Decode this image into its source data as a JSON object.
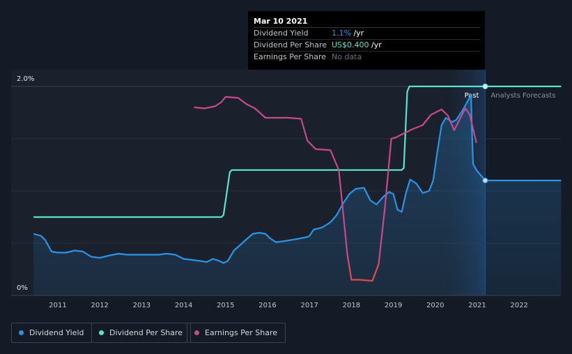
{
  "chart_data": {
    "type": "line",
    "x_unit": "year",
    "xlim": [
      2010.4,
      2023.0
    ],
    "ylim": [
      0,
      2.0
    ],
    "y_ticks": [
      {
        "value": 2.0,
        "label": "2.0%"
      },
      {
        "value": 0,
        "label": "0%"
      }
    ],
    "x_ticks": [
      "2011",
      "2012",
      "2013",
      "2014",
      "2015",
      "2016",
      "2017",
      "2018",
      "2019",
      "2020",
      "2021",
      "2022"
    ],
    "grid": true,
    "past_label": "Past",
    "forecast_label": "Analysts Forecasts",
    "current_x": 2021.19,
    "series": [
      {
        "name": "Dividend Yield",
        "color": "#2b94e6",
        "area": true,
        "points": [
          [
            2010.42,
            0.59
          ],
          [
            2010.6,
            0.57
          ],
          [
            2010.7,
            0.53
          ],
          [
            2010.85,
            0.42
          ],
          [
            2011.0,
            0.41
          ],
          [
            2011.2,
            0.41
          ],
          [
            2011.4,
            0.43
          ],
          [
            2011.6,
            0.42
          ],
          [
            2011.8,
            0.37
          ],
          [
            2012.0,
            0.36
          ],
          [
            2012.2,
            0.38
          ],
          [
            2012.45,
            0.4
          ],
          [
            2012.65,
            0.39
          ],
          [
            2012.9,
            0.39
          ],
          [
            2013.15,
            0.39
          ],
          [
            2013.4,
            0.39
          ],
          [
            2013.6,
            0.4
          ],
          [
            2013.8,
            0.39
          ],
          [
            2014.0,
            0.35
          ],
          [
            2014.2,
            0.34
          ],
          [
            2014.4,
            0.33
          ],
          [
            2014.55,
            0.32
          ],
          [
            2014.7,
            0.35
          ],
          [
            2014.85,
            0.33
          ],
          [
            2014.95,
            0.31
          ],
          [
            2015.05,
            0.33
          ],
          [
            2015.2,
            0.43
          ],
          [
            2015.45,
            0.52
          ],
          [
            2015.65,
            0.59
          ],
          [
            2015.8,
            0.6
          ],
          [
            2015.95,
            0.59
          ],
          [
            2016.05,
            0.55
          ],
          [
            2016.2,
            0.51
          ],
          [
            2016.4,
            0.52
          ],
          [
            2016.7,
            0.54
          ],
          [
            2016.95,
            0.56
          ],
          [
            2017.0,
            0.57
          ],
          [
            2017.1,
            0.63
          ],
          [
            2017.3,
            0.65
          ],
          [
            2017.5,
            0.7
          ],
          [
            2017.65,
            0.77
          ],
          [
            2017.8,
            0.88
          ],
          [
            2017.95,
            0.97
          ],
          [
            2018.1,
            1.02
          ],
          [
            2018.3,
            1.03
          ],
          [
            2018.45,
            0.91
          ],
          [
            2018.6,
            0.87
          ],
          [
            2018.75,
            0.94
          ],
          [
            2018.9,
            0.99
          ],
          [
            2019.0,
            0.97
          ],
          [
            2019.1,
            0.82
          ],
          [
            2019.2,
            0.8
          ],
          [
            2019.3,
            0.98
          ],
          [
            2019.4,
            1.11
          ],
          [
            2019.55,
            1.07
          ],
          [
            2019.7,
            0.98
          ],
          [
            2019.85,
            1.0
          ],
          [
            2019.95,
            1.1
          ],
          [
            2020.05,
            1.38
          ],
          [
            2020.15,
            1.63
          ],
          [
            2020.25,
            1.7
          ],
          [
            2020.4,
            1.66
          ],
          [
            2020.5,
            1.68
          ],
          [
            2020.65,
            1.77
          ],
          [
            2020.8,
            1.88
          ],
          [
            2020.85,
            1.92
          ],
          [
            2020.87,
            1.62
          ],
          [
            2020.9,
            1.26
          ],
          [
            2020.98,
            1.2
          ],
          [
            2021.19,
            1.1
          ],
          [
            2023.0,
            1.1
          ]
        ]
      },
      {
        "name": "Dividend Per Share",
        "color": "#5ce3cf",
        "points": [
          [
            2010.42,
            0.75
          ],
          [
            2014.9,
            0.75
          ],
          [
            2014.95,
            0.77
          ],
          [
            2015.1,
            1.18
          ],
          [
            2015.15,
            1.2
          ],
          [
            2019.2,
            1.2
          ],
          [
            2019.25,
            1.22
          ],
          [
            2019.33,
            1.95
          ],
          [
            2019.38,
            2.0
          ],
          [
            2023.0,
            2.0
          ]
        ]
      },
      {
        "name": "Earnings Per Share",
        "color": "#c8498b",
        "low_color": "#e24b4b",
        "points": [
          [
            2014.25,
            1.8
          ],
          [
            2014.5,
            1.79
          ],
          [
            2014.75,
            1.81
          ],
          [
            2014.9,
            1.85
          ],
          [
            2015.0,
            1.9
          ],
          [
            2015.3,
            1.89
          ],
          [
            2015.5,
            1.83
          ],
          [
            2015.7,
            1.79
          ],
          [
            2015.95,
            1.7
          ],
          [
            2016.2,
            1.7
          ],
          [
            2016.5,
            1.7
          ],
          [
            2016.8,
            1.69
          ],
          [
            2016.95,
            1.48
          ],
          [
            2017.15,
            1.4
          ],
          [
            2017.5,
            1.39
          ],
          [
            2017.7,
            1.2
          ],
          [
            2017.8,
            0.8
          ],
          [
            2017.9,
            0.4
          ],
          [
            2018.0,
            0.15
          ],
          [
            2018.2,
            0.15
          ],
          [
            2018.5,
            0.14
          ],
          [
            2018.65,
            0.3
          ],
          [
            2018.8,
            0.85
          ],
          [
            2018.95,
            1.5
          ],
          [
            2019.05,
            1.51
          ],
          [
            2019.25,
            1.55
          ],
          [
            2019.45,
            1.59
          ],
          [
            2019.7,
            1.63
          ],
          [
            2019.9,
            1.73
          ],
          [
            2020.15,
            1.78
          ],
          [
            2020.3,
            1.72
          ],
          [
            2020.45,
            1.58
          ],
          [
            2020.6,
            1.7
          ],
          [
            2020.72,
            1.79
          ],
          [
            2020.82,
            1.73
          ],
          [
            2020.98,
            1.46
          ]
        ]
      }
    ]
  },
  "tooltip": {
    "date": "Mar 10 2021",
    "rows": [
      {
        "label": "Dividend Yield",
        "value": "1.1%",
        "unit": " /yr",
        "accent": "blue"
      },
      {
        "label": "Dividend Per Share",
        "value": "US$0.400",
        "unit": " /yr",
        "accent": "teal"
      },
      {
        "label": "Earnings Per Share",
        "value": "No data",
        "unit": "",
        "accent": "muted"
      }
    ]
  },
  "legend": [
    {
      "label": "Dividend Yield",
      "color": "#2b94e6"
    },
    {
      "label": "Dividend Per Share",
      "color": "#5ce3cf"
    },
    {
      "label": "Earnings Per Share",
      "color": "#c8498b"
    }
  ]
}
